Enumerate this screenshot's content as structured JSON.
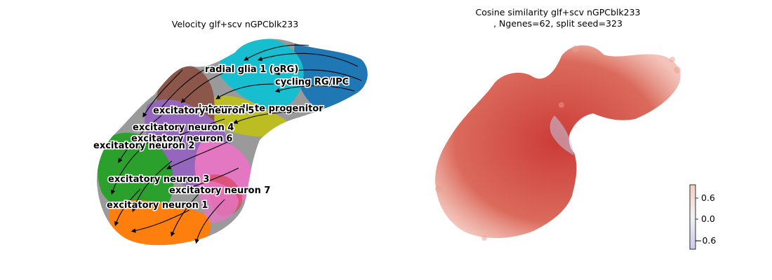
{
  "panels": {
    "left": {
      "title": "Velocity glf+scv nGPCblk233"
    },
    "right": {
      "title_line1": "Cosine similarity glf+scv nGPCblk233",
      "title_line2": ", Ngenes=62, split seed=323"
    }
  },
  "chart_data": [
    {
      "type": "scatter",
      "title": "Velocity glf+scv nGPCblk233",
      "annotations": [
        "radial glia 1 (oRG)",
        "cycling RG/IPC",
        "intermediate progenitor",
        "excitatory neuron 5",
        "excitatory neuron 4",
        "excitatory neuron 6",
        "excitatory neuron 2",
        "excitatory neuron 3",
        "excitatory neuron 7",
        "excitatory neuron 1"
      ],
      "cluster_colors": {
        "radial glia 1 (oRG)": "#17becf",
        "cycling RG/IPC": "#1f77b4",
        "intermediate progenitor": "#bcbd22",
        "excitatory neuron 5": "#8c564b",
        "excitatory neuron 4": "#9467bd",
        "excitatory neuron 6": "#e377c2",
        "excitatory neuron 2": "#2ca02c",
        "excitatory neuron 3": "#7f7f7f",
        "excitatory neuron 7": "#d62728",
        "excitatory neuron 1": "#ff7f0e"
      },
      "overlay": "velocity streamlines"
    },
    {
      "type": "scatter",
      "title": "Cosine similarity glf+scv nGPCblk233, Ngenes=62, split seed=323",
      "colorbar": {
        "ticks": [
          "0.6",
          "0.0",
          "−0.6"
        ],
        "range": [
          -0.9,
          0.9
        ],
        "colormap": "coolwarm"
      },
      "dominant_color": "#d24a3a"
    }
  ]
}
